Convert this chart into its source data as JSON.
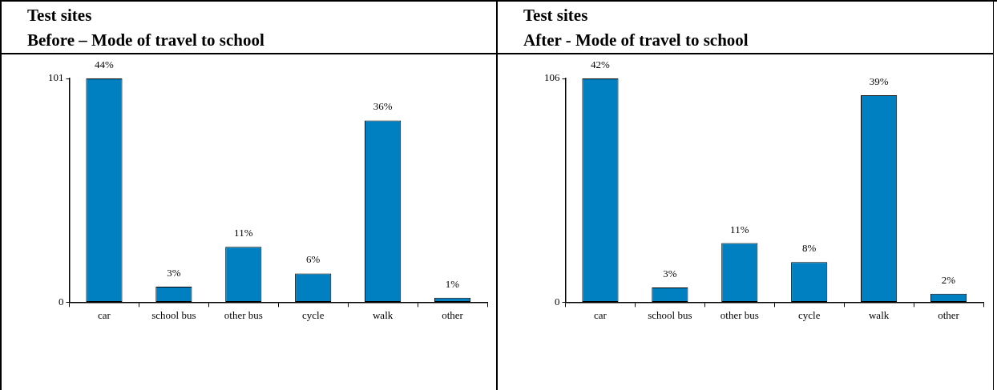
{
  "chart_data": [
    {
      "type": "bar",
      "title": "Test sites",
      "subtitle": "Before – Mode of travel to school",
      "categories": [
        "car",
        "school bus",
        "other bus",
        "cycle",
        "walk",
        "other"
      ],
      "values": [
        101,
        7,
        25,
        13,
        82,
        2
      ],
      "color": "#0080c0",
      "ylim": [
        0,
        101
      ],
      "yticks": [
        0,
        101
      ],
      "grid": false,
      "legend": false,
      "annotations": [
        {
          "text": "44%",
          "x": "car",
          "y": 101
        },
        {
          "text": "3%",
          "x": "school bus",
          "y": 7
        },
        {
          "text": "11%",
          "x": "other bus",
          "y": 25
        },
        {
          "text": "6%",
          "x": "cycle",
          "y": 13
        },
        {
          "text": "36%",
          "x": "walk",
          "y": 82
        },
        {
          "text": "1%",
          "x": "other",
          "y": 2
        }
      ]
    },
    {
      "type": "bar",
      "title": "Test sites",
      "subtitle": "After - Mode of travel to school",
      "categories": [
        "car",
        "school bus",
        "other bus",
        "cycle",
        "walk",
        "other"
      ],
      "values": [
        106,
        7,
        28,
        19,
        98,
        4
      ],
      "color": "#0080c0",
      "ylim": [
        0,
        106
      ],
      "yticks": [
        0,
        106
      ],
      "grid": false,
      "legend": false,
      "annotations": [
        {
          "text": "42%",
          "x": "car",
          "y": 106
        },
        {
          "text": "3%",
          "x": "school bus",
          "y": 7
        },
        {
          "text": "11%",
          "x": "other bus",
          "y": 28
        },
        {
          "text": "8%",
          "x": "cycle",
          "y": 19
        },
        {
          "text": "39%",
          "x": "walk",
          "y": 98
        },
        {
          "text": "2%",
          "x": "other",
          "y": 4
        }
      ]
    }
  ]
}
